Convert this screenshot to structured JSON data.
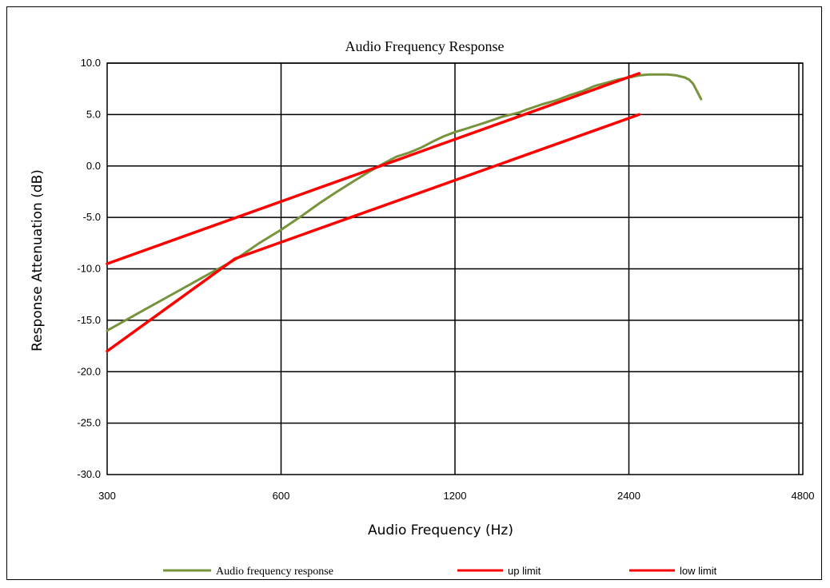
{
  "chart_data": {
    "type": "line",
    "title": "Audio Frequency Response",
    "xlabel": "Audio Frequency (Hz)",
    "ylabel": "Response  Attenuation (dB)",
    "x_scale": "log2",
    "xlim": [
      300,
      4800
    ],
    "ylim": [
      -30,
      10
    ],
    "x_ticks": [
      300,
      600,
      1200,
      2400,
      4800
    ],
    "x_tick_labels": [
      "300",
      "600",
      "1200",
      "2400",
      "4800"
    ],
    "y_ticks": [
      -30,
      -25,
      -20,
      -15,
      -10,
      -5,
      0,
      5,
      10
    ],
    "y_tick_labels": [
      "-30.0",
      "-25.0",
      "-20.0",
      "-15.0",
      "-10.0",
      "-5.0",
      "0.0",
      "5.0",
      "10.0"
    ],
    "grid": true,
    "legend_position": "bottom",
    "series": [
      {
        "name": "Audio frequency response",
        "color": "#77933c",
        "x": [
          300,
          350,
          400,
          450,
          500,
          550,
          600,
          650,
          700,
          750,
          800,
          850,
          900,
          950,
          1000,
          1050,
          1100,
          1150,
          1200,
          1250,
          1300,
          1350,
          1400,
          1450,
          1500,
          1550,
          1600,
          1700,
          1800,
          1900,
          2000,
          2100,
          2200,
          2300,
          2400,
          2500,
          2600,
          2700,
          2800,
          2900,
          3000,
          3050,
          3100,
          3200
        ],
        "y": [
          -16,
          -13.9,
          -12.1,
          -10.5,
          -9.1,
          -7.5,
          -6.2,
          -4.9,
          -3.6,
          -2.5,
          -1.5,
          -0.6,
          0.2,
          0.9,
          1.3,
          1.8,
          2.4,
          2.9,
          3.3,
          3.6,
          3.9,
          4.2,
          4.5,
          4.8,
          5.0,
          5.2,
          5.5,
          6.0,
          6.4,
          6.9,
          7.3,
          7.8,
          8.1,
          8.4,
          8.6,
          8.8,
          8.9,
          8.9,
          8.9,
          8.8,
          8.6,
          8.4,
          8.0,
          6.5
        ]
      },
      {
        "name": "up limit",
        "color": "#ff0000",
        "x": [
          300,
          2500
        ],
        "y": [
          -9.5,
          9
        ]
      },
      {
        "name": "low limit",
        "color": "#ff0000",
        "x": [
          300,
          500,
          2500
        ],
        "y": [
          -18,
          -9,
          5
        ]
      }
    ]
  }
}
